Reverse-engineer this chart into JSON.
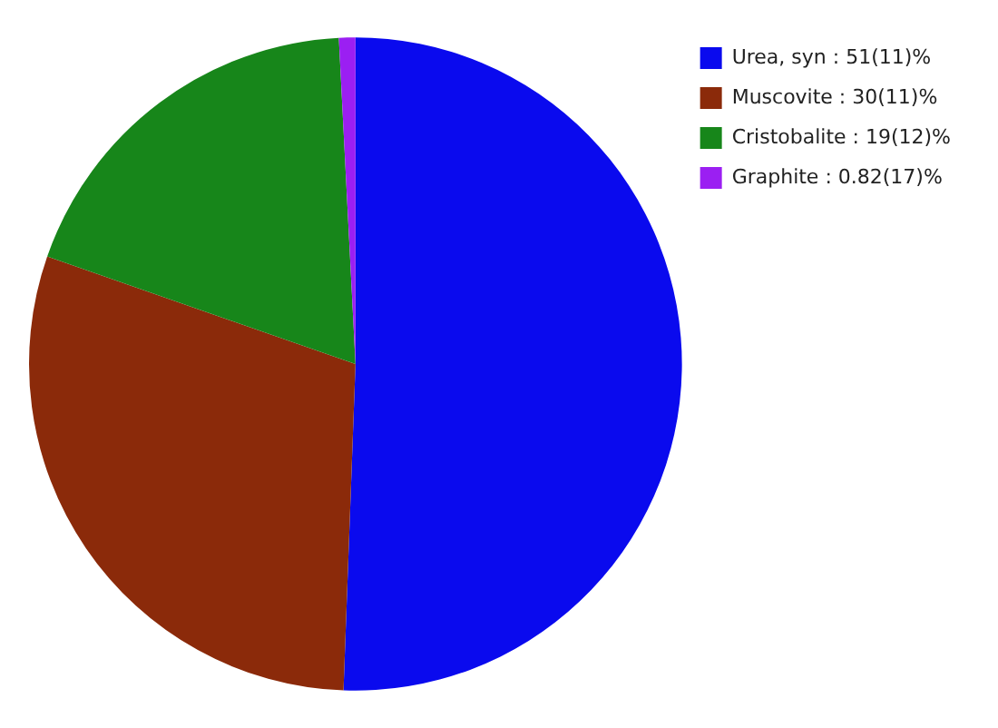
{
  "chart_data": {
    "type": "pie",
    "categories": [
      "Urea, syn",
      "Muscovite",
      "Cristobalite",
      "Graphite"
    ],
    "values": [
      51,
      30,
      19,
      0.82
    ],
    "value_labels": [
      "51(11)%",
      "30(11)%",
      "19(12)%",
      "0.82(17)%"
    ],
    "colors": [
      "#0a0aee",
      "#8b2a0a",
      "#17861a",
      "#9b1ff2"
    ],
    "legend": "top right"
  }
}
